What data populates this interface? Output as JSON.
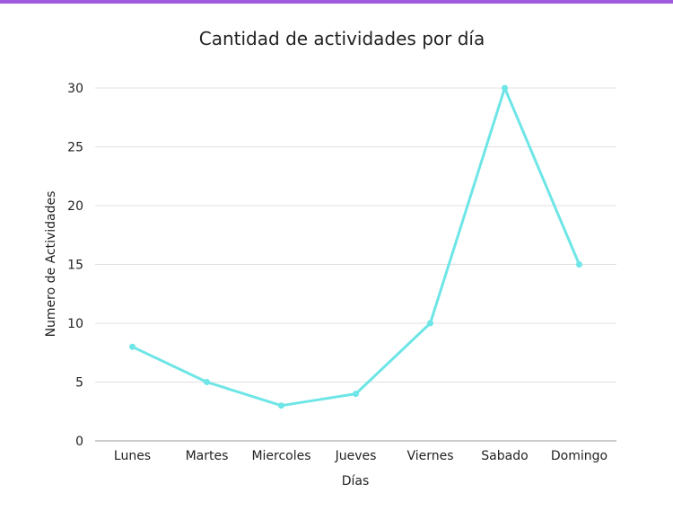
{
  "theme": {
    "accent_bar_color": "#a05ae0",
    "series_color": "#6ee5e6",
    "grid_color": "#e0e0e0",
    "axis_color": "#9a9a9a"
  },
  "chart_data": {
    "type": "line",
    "title": "Cantidad de actividades por día",
    "xlabel": "Días",
    "ylabel": "Numero de Actividades",
    "categories": [
      "Lunes",
      "Martes",
      "Miercoles",
      "Jueves",
      "Viernes",
      "Sabado",
      "Domingo"
    ],
    "series": [
      {
        "values": [
          8,
          5,
          3,
          4,
          10,
          30,
          15
        ]
      }
    ],
    "ylim": [
      0,
      30
    ],
    "yticks": [
      0,
      5,
      10,
      15,
      20,
      25,
      30
    ],
    "grid": true,
    "legend": "none"
  }
}
